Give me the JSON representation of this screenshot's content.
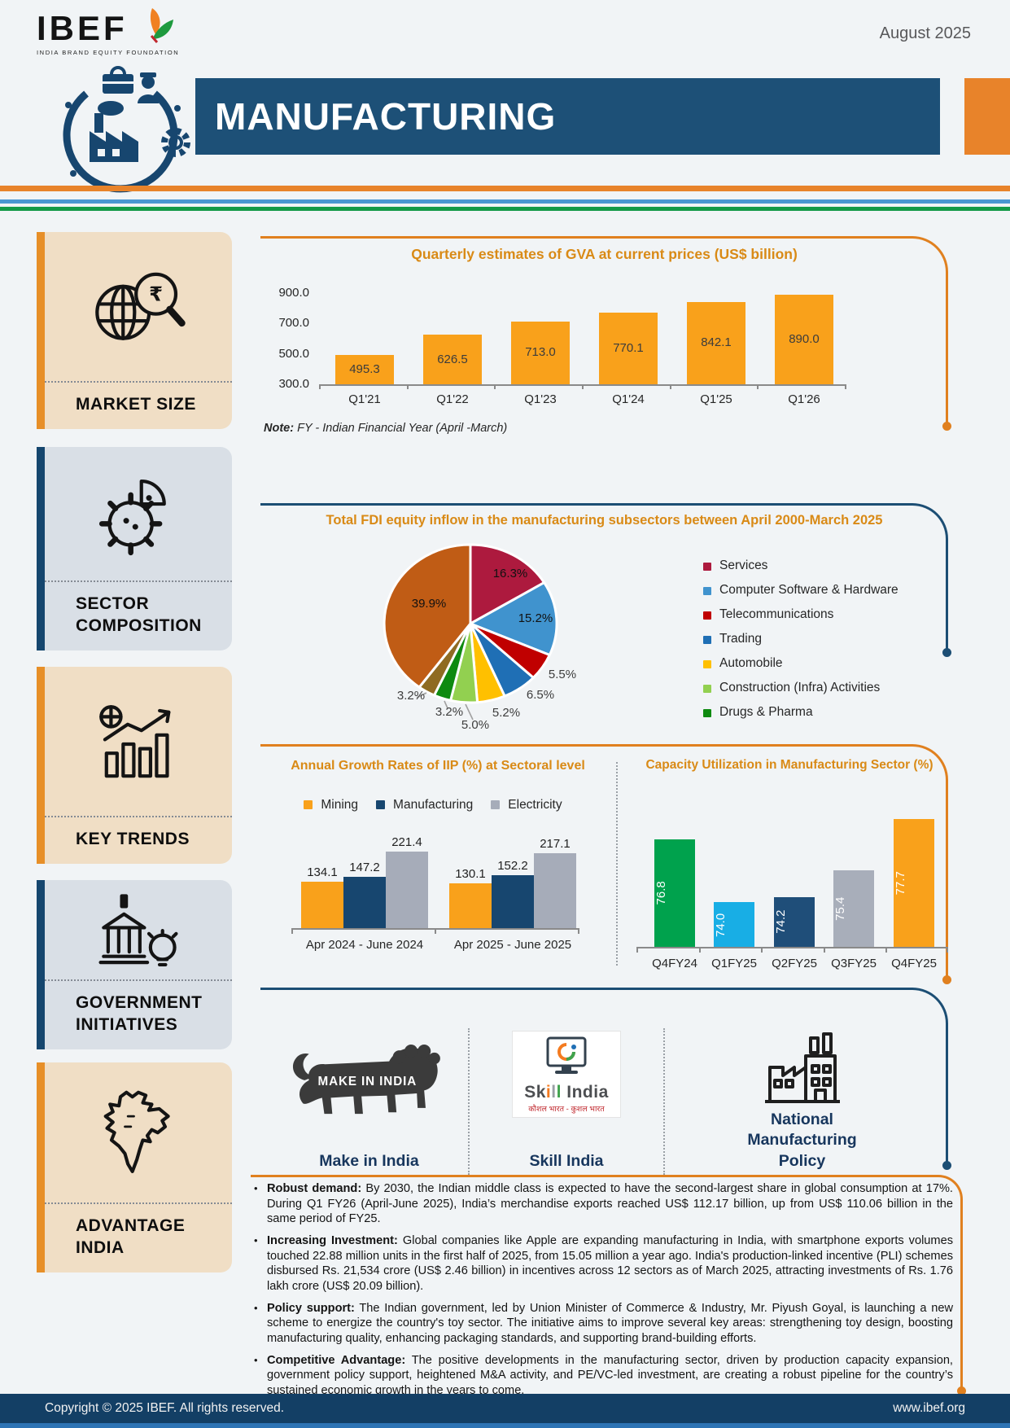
{
  "colors": {
    "accent_orange": "#E0801F",
    "accent_blue": "#1C4E74",
    "banner_blue": "#1D5077",
    "banner_orange": "#E8832A",
    "title_orange": "#D98A16",
    "footer_blue": "#133F65",
    "card_beige": "#F0DEC5",
    "card_gray": "#D9DFE6",
    "stripe_blue": "#4A97D2",
    "stripe_green": "#149A48"
  },
  "header": {
    "brand": "IBEF",
    "brand_tagline": "INDIA BRAND EQUITY FOUNDATION",
    "date": "August 2025",
    "title": "MANUFACTURING",
    "icons": [
      "leaf-icon",
      "factory-circle-icon",
      "gear-icon",
      "toolbox-icon",
      "worker-icon"
    ]
  },
  "sidebar": {
    "cards": [
      {
        "label": "MARKET SIZE",
        "icon": "globe-magnifier-rupee-icon"
      },
      {
        "label": "SECTOR COMPOSITION",
        "icon": "gear-pie-icon"
      },
      {
        "label": "KEY TRENDS",
        "icon": "growth-chart-icon"
      },
      {
        "label": "GOVERNMENT INITIATIVES",
        "icon": "government-building-icon"
      },
      {
        "label": "ADVANTAGE INDIA",
        "icon": "india-map-icon"
      }
    ]
  },
  "market_size": {
    "note_label": "Note:",
    "note_text": " FY - Indian Financial Year (April -March)"
  },
  "chart_data": [
    {
      "type": "bar",
      "title": "Quarterly estimates of GVA at current prices (US$ billion)",
      "categories": [
        "Q1'21",
        "Q1'22",
        "Q1'23",
        "Q1'24",
        "Q1'25",
        "Q1'26"
      ],
      "values": [
        "495.3",
        "626.5",
        "713.0",
        "770.1",
        "842.1",
        "890.0"
      ],
      "bar_color": "#F9A11B",
      "ylim": [
        300,
        900
      ],
      "ytick_labels": [
        "300.0",
        "500.0",
        "700.0",
        "900.0"
      ],
      "grid": false,
      "legend_position": "none"
    },
    {
      "type": "pie",
      "title": "Total FDI equity inflow in the manufacturing subsectors between April 2000-March 2025",
      "slices": [
        {
          "label": "Services",
          "value": 16.3,
          "color": "#AD1A3E"
        },
        {
          "label": "Computer Software & Hardware",
          "value": 15.2,
          "color": "#4093CE"
        },
        {
          "label": "Telecommunications",
          "value": 5.5,
          "color": "#C00000"
        },
        {
          "label": "Trading",
          "value": 6.5,
          "color": "#1F6FB5"
        },
        {
          "label": "Automobile",
          "value": 5.2,
          "color": "#FFC000"
        },
        {
          "label": "Construction (Infra) Activities",
          "value": 5.0,
          "color": "#92D050"
        },
        {
          "label": "Drugs & Pharma",
          "value": 3.2,
          "color": "#0E8A10"
        },
        {
          "label": "",
          "value": 3.2,
          "color": "#8F6B22"
        },
        {
          "label": "",
          "value": 39.9,
          "color": "#C05C15"
        }
      ],
      "legend_position": "right"
    },
    {
      "type": "bar",
      "title": "Annual Growth Rates of IIP (%) at Sectoral level",
      "categories": [
        "Apr 2024 - June 2024",
        "Apr 2025 - June 2025"
      ],
      "series": [
        {
          "name": "Mining",
          "color": "#F9A11B",
          "values": [
            "134.1",
            "130.1"
          ]
        },
        {
          "name": "Manufacturing",
          "color": "#17466F",
          "values": [
            "147.2",
            "152.2"
          ]
        },
        {
          "name": "Electricity",
          "color": "#A6ACB9",
          "values": [
            "221.4",
            "217.1"
          ]
        }
      ],
      "ylim": [
        0,
        240
      ],
      "grid": false,
      "legend_position": "top"
    },
    {
      "type": "bar",
      "title": "Capacity Utilization in Manufacturing Sector (%)",
      "categories": [
        "Q4FY24",
        "Q1FY25",
        "Q2FY25",
        "Q3FY25",
        "Q4FY25"
      ],
      "values": [
        "76.8",
        "74.0",
        "74.2",
        "75.4",
        "77.7"
      ],
      "bar_colors": [
        "#00A24D",
        "#18AEE5",
        "#1F4E79",
        "#A8AEBA",
        "#F9A11B"
      ],
      "ylim": [
        72,
        79
      ],
      "grid": false,
      "value_label_style": "vertical-white-inside",
      "legend_position": "none"
    }
  ],
  "gov_initiatives": {
    "items": [
      {
        "label": "Make in India",
        "logo_text": "MAKE IN INDIA",
        "icon": "make-in-india-lion-logo"
      },
      {
        "label": "Skill India",
        "logo_text": "Skill India",
        "logo_tagline": "कौशल भारत - कुशल भारत",
        "icon": "skill-india-logo"
      },
      {
        "label": "National Manufacturing Policy",
        "icon": "factory-outline-icon"
      }
    ]
  },
  "advantage_india": {
    "bullets": [
      {
        "lead": "Robust demand:",
        "text": " By 2030, the Indian middle class is expected to have the second-largest share in global consumption at 17%. During Q1 FY26 (April-June 2025), India’s merchandise exports reached US$ 112.17 billion, up from US$ 110.06 billion in the same period of FY25."
      },
      {
        "lead": "Increasing Investment:",
        "text": " Global companies like Apple are expanding manufacturing in India, with smartphone exports volumes touched 22.88 million units in the first half of 2025, from 15.05 million a year ago. India's production-linked incentive (PLI) schemes disbursed Rs. 21,534 crore (US$ 2.46 billion) in incentives across 12 sectors as of March 2025, attracting investments of Rs. 1.76 lakh crore (US$ 20.09 billion)."
      },
      {
        "lead": "Policy support:",
        "text": " The Indian government, led by Union Minister of Commerce & Industry, Mr. Piyush Goyal, is launching a new scheme to energize the country's toy sector. The initiative aims to improve several key areas: strengthening toy design, boosting manufacturing quality, enhancing packaging standards, and supporting brand-building efforts."
      },
      {
        "lead": "Competitive Advantage:",
        "text": " The positive developments in the manufacturing sector, driven by production capacity expansion, government policy support, heightened M&A activity, and PE/VC-led investment, are creating a robust pipeline for the country’s sustained economic growth in the years to come."
      }
    ]
  },
  "footer": {
    "copyright": "Copyright © 2025 IBEF. All rights reserved.",
    "website": "www.ibef.org"
  }
}
